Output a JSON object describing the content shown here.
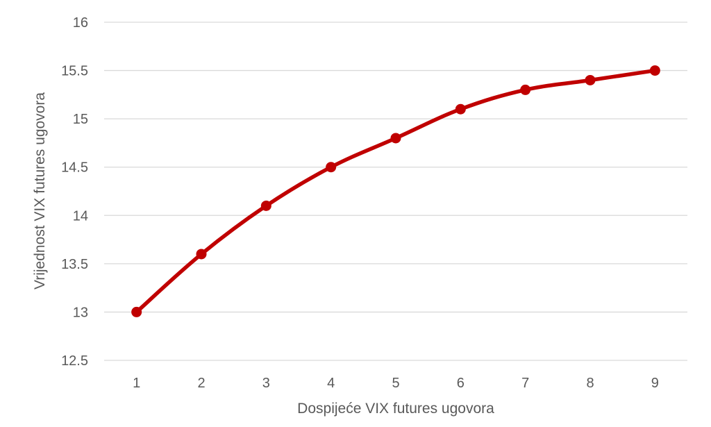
{
  "chart_data": {
    "type": "line",
    "title": "",
    "xlabel": "Dospijeće VIX futures ugovora",
    "ylabel": "Vrijednost VIX futures ugovora",
    "x": [
      1,
      2,
      3,
      4,
      5,
      6,
      7,
      8,
      9
    ],
    "series": [
      {
        "values": [
          13.0,
          13.6,
          14.1,
          14.5,
          14.8,
          15.1,
          15.3,
          15.4,
          15.5
        ],
        "color": "#c00000"
      }
    ],
    "ylim": [
      12.5,
      16
    ],
    "yticks": [
      12.5,
      13,
      13.5,
      14,
      14.5,
      15,
      15.5,
      16
    ],
    "xticks": [
      1,
      2,
      3,
      4,
      5,
      6,
      7,
      8,
      9
    ],
    "grid": true,
    "gridline_color": "#d9d9d9",
    "legend": "none"
  }
}
